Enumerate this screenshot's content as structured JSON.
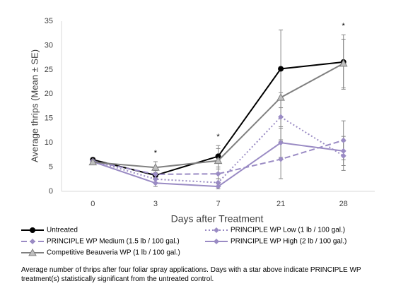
{
  "chart_data": {
    "type": "line",
    "y_label": "Average thrips (Mean ± SE)",
    "x_label": "Days after Treatment",
    "categories": [
      "0",
      "3",
      "7",
      "21",
      "28"
    ],
    "ylim": [
      0,
      35
    ],
    "yticks": [
      0,
      5,
      10,
      15,
      20,
      25,
      30,
      35
    ],
    "grid": false,
    "error_color": "#888888",
    "series": [
      {
        "name": "Untreated",
        "color": "#000000",
        "dash": "solid",
        "marker": "circle",
        "values": [
          6.5,
          3.3,
          7.2,
          25.2,
          26.6
        ],
        "errors": [
          0.4,
          0.6,
          2.2,
          8,
          5.6
        ]
      },
      {
        "name": "PRINCIPLE WP Low (1 lb / 100 gal.)",
        "color": "#9a8bc4",
        "dash": "dotted",
        "marker": "diamond",
        "values": [
          6.3,
          2.5,
          1.8,
          15.3,
          7.3
        ],
        "errors": [
          0.5,
          0.8,
          0.8,
          5,
          3
        ]
      },
      {
        "name": "PRINCIPLE WP Medium (1.5 lb / 100 gal.)",
        "color": "#9a8bc4",
        "dash": "dashed",
        "marker": "diamond",
        "values": [
          6.2,
          3.5,
          3.6,
          6.6,
          10.5
        ],
        "errors": [
          0.5,
          0.8,
          1,
          4,
          4
        ]
      },
      {
        "name": "PRINCIPLE WP High (2 lb / 100 gal.)",
        "color": "#9a8bc4",
        "dash": "solid",
        "marker": "diamond",
        "values": [
          6.1,
          1.7,
          1.0,
          10.0,
          8.3
        ],
        "errors": [
          0.3,
          0.7,
          0.5,
          3,
          3
        ]
      },
      {
        "name": "Competitive Beauveria WP (1 lb / 100 gal.)",
        "color": "#7f7f7f",
        "dash": "solid",
        "marker": "triangle",
        "values": [
          6.0,
          4.9,
          6.3,
          19.3,
          26.3
        ],
        "errors": [
          0.4,
          1.2,
          2.5,
          6,
          5
        ]
      }
    ],
    "annotations": [
      {
        "text": "*",
        "category": "3"
      },
      {
        "text": "*",
        "category": "7"
      },
      {
        "text": "*",
        "category": "28"
      }
    ],
    "caption": "Average number of thrips after four foliar spray applications. Days with a star above indicate PRINCIPLE WP treatment(s) statistically significant from the untreated control."
  }
}
